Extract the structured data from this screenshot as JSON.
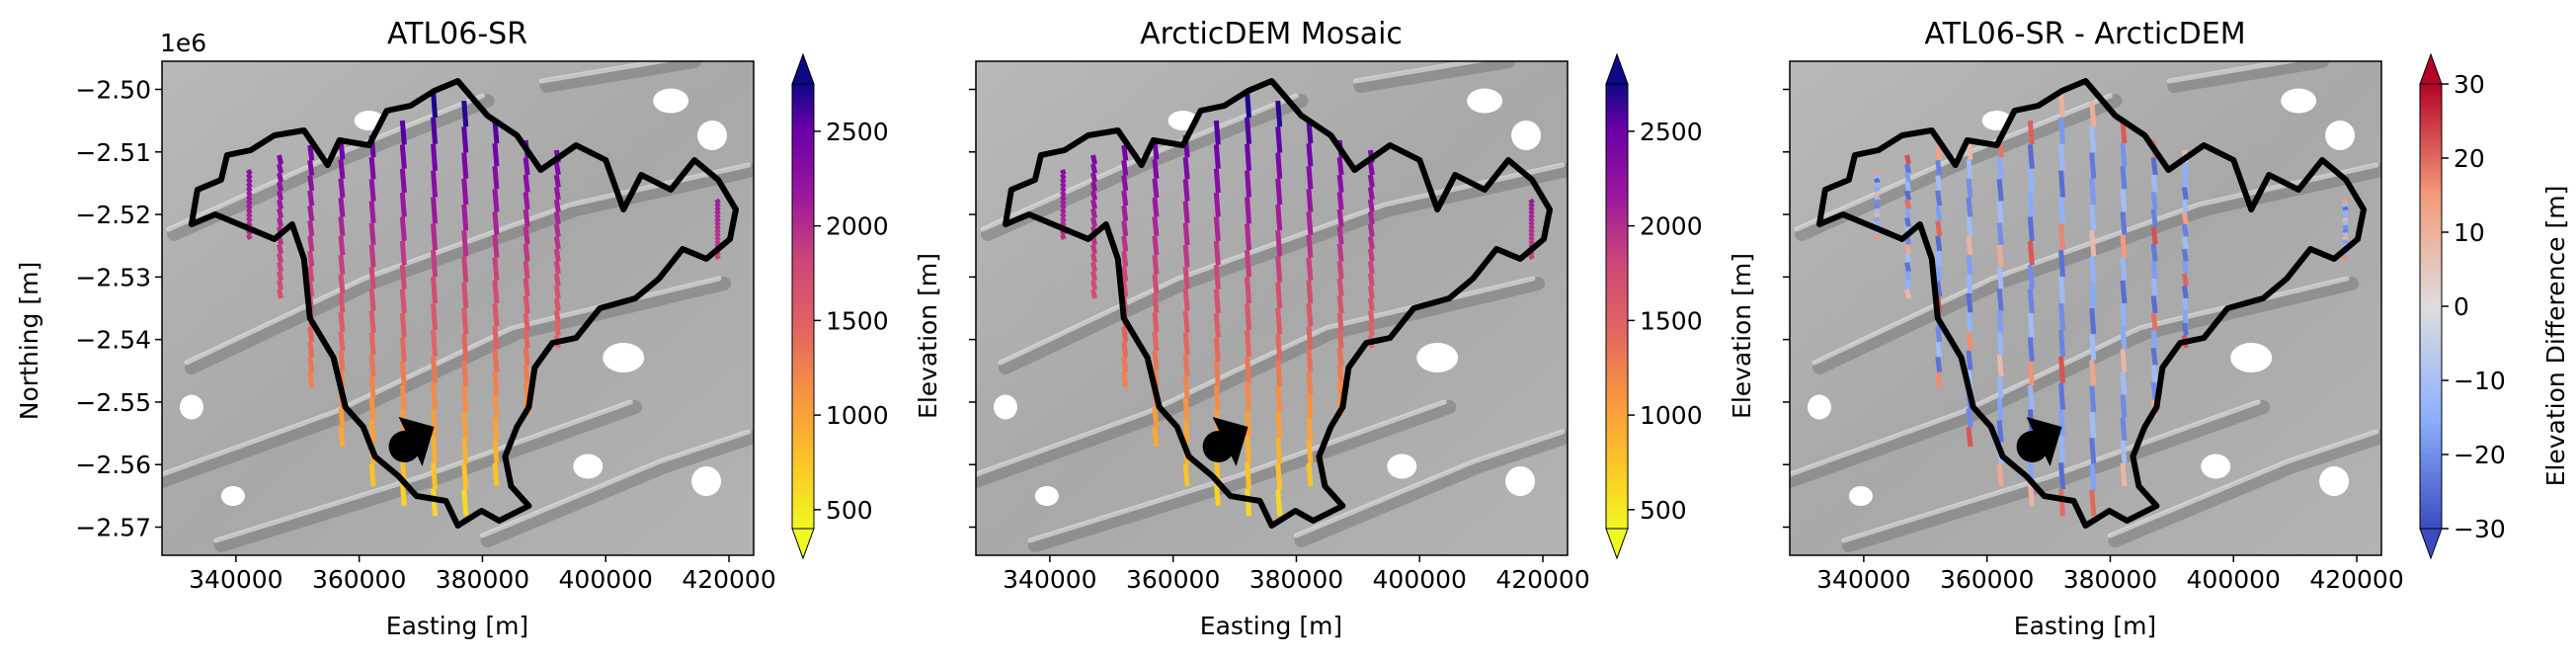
{
  "chart_data": [
    {
      "type": "scatter",
      "title": "ATL06-SR",
      "xlabel": "Easting [m]",
      "ylabel": "Northing [m]",
      "y_offset_label": "1e6",
      "xlim": [
        328000,
        424000
      ],
      "ylim": [
        -2.5745,
        -2.4955
      ],
      "x_ticks": [
        340000,
        360000,
        380000,
        400000,
        420000
      ],
      "x_tick_labels": [
        "340000",
        "360000",
        "380000",
        "400000",
        "420000"
      ],
      "y_ticks": [
        -2.5,
        -2.51,
        -2.52,
        -2.53,
        -2.54,
        -2.55,
        -2.56,
        -2.57
      ],
      "y_tick_labels": [
        "−2.50",
        "−2.51",
        "−2.52",
        "−2.53",
        "−2.54",
        "−2.55",
        "−2.56",
        "−2.57"
      ],
      "colorbar": {
        "label": "Elevation [m]",
        "colormap": "plasma_r",
        "range": [
          400,
          2750
        ],
        "ticks": [
          500,
          1000,
          1500,
          2000,
          2500
        ],
        "tick_labels": [
          "500",
          "1000",
          "1500",
          "2000",
          "2500"
        ],
        "extend": "both"
      }
    },
    {
      "type": "scatter",
      "title": "ArcticDEM Mosaic",
      "xlabel": "Easting [m]",
      "xlim": [
        328000,
        424000
      ],
      "ylim": [
        -2.5745,
        -2.4955
      ],
      "x_ticks": [
        340000,
        360000,
        380000,
        400000,
        420000
      ],
      "x_tick_labels": [
        "340000",
        "360000",
        "380000",
        "400000",
        "420000"
      ],
      "colorbar": {
        "label": "Elevation [m]",
        "colormap": "plasma_r",
        "range": [
          400,
          2750
        ],
        "ticks": [
          500,
          1000,
          1500,
          2000,
          2500
        ],
        "tick_labels": [
          "500",
          "1000",
          "1500",
          "2000",
          "2500"
        ],
        "extend": "both"
      }
    },
    {
      "type": "scatter",
      "title": "ATL06-SR - ArcticDEM",
      "xlabel": "Easting [m]",
      "xlim": [
        328000,
        424000
      ],
      "ylim": [
        -2.5745,
        -2.4955
      ],
      "x_ticks": [
        340000,
        360000,
        380000,
        400000,
        420000
      ],
      "x_tick_labels": [
        "340000",
        "360000",
        "380000",
        "400000",
        "420000"
      ],
      "colorbar": {
        "label": "Elevation Difference [m]",
        "colormap": "coolwarm",
        "range": [
          -30,
          30
        ],
        "ticks": [
          -30,
          -20,
          -10,
          0,
          10,
          20,
          30
        ],
        "tick_labels": [
          "−30",
          "−20",
          "−10",
          "0",
          "10",
          "20",
          "30"
        ],
        "extend": "both"
      }
    }
  ],
  "basin_outline_color": "#000000",
  "track_easting": [
    342000,
    347000,
    352000,
    357000,
    362000,
    367000,
    372000,
    377000,
    382000,
    387000,
    392000,
    418000
  ]
}
